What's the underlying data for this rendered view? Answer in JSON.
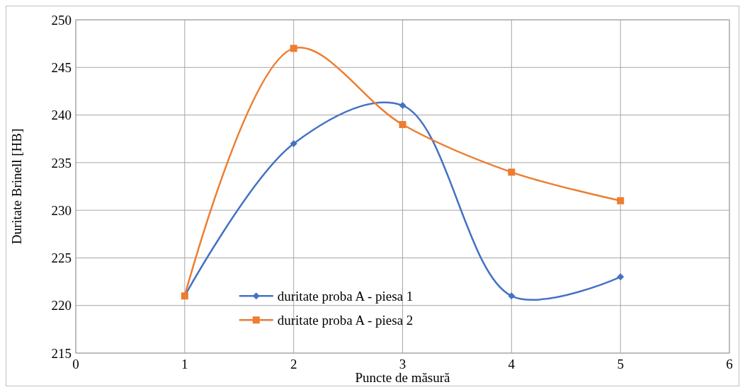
{
  "chart_data": {
    "type": "line",
    "xlabel": "Puncte de măsură",
    "ylabel": "Duritate Brinell [HB]",
    "x": [
      1,
      2,
      3,
      4,
      5
    ],
    "series": [
      {
        "name": "duritate proba A - piesa 1",
        "color": "#4472c4",
        "marker": "diamond",
        "values": [
          221,
          237,
          241,
          221,
          223
        ]
      },
      {
        "name": "duritate proba A - piesa 2",
        "color": "#ed7d31",
        "marker": "square",
        "values": [
          221,
          247,
          239,
          234,
          231
        ]
      }
    ],
    "xlim": [
      0,
      6
    ],
    "xticks": [
      0,
      1,
      2,
      3,
      4,
      5,
      6
    ],
    "ylim": [
      215,
      250
    ],
    "yticks": [
      215,
      220,
      225,
      230,
      235,
      240,
      245,
      250
    ],
    "grid": true,
    "legend": "bottom",
    "line_style": "solid"
  }
}
